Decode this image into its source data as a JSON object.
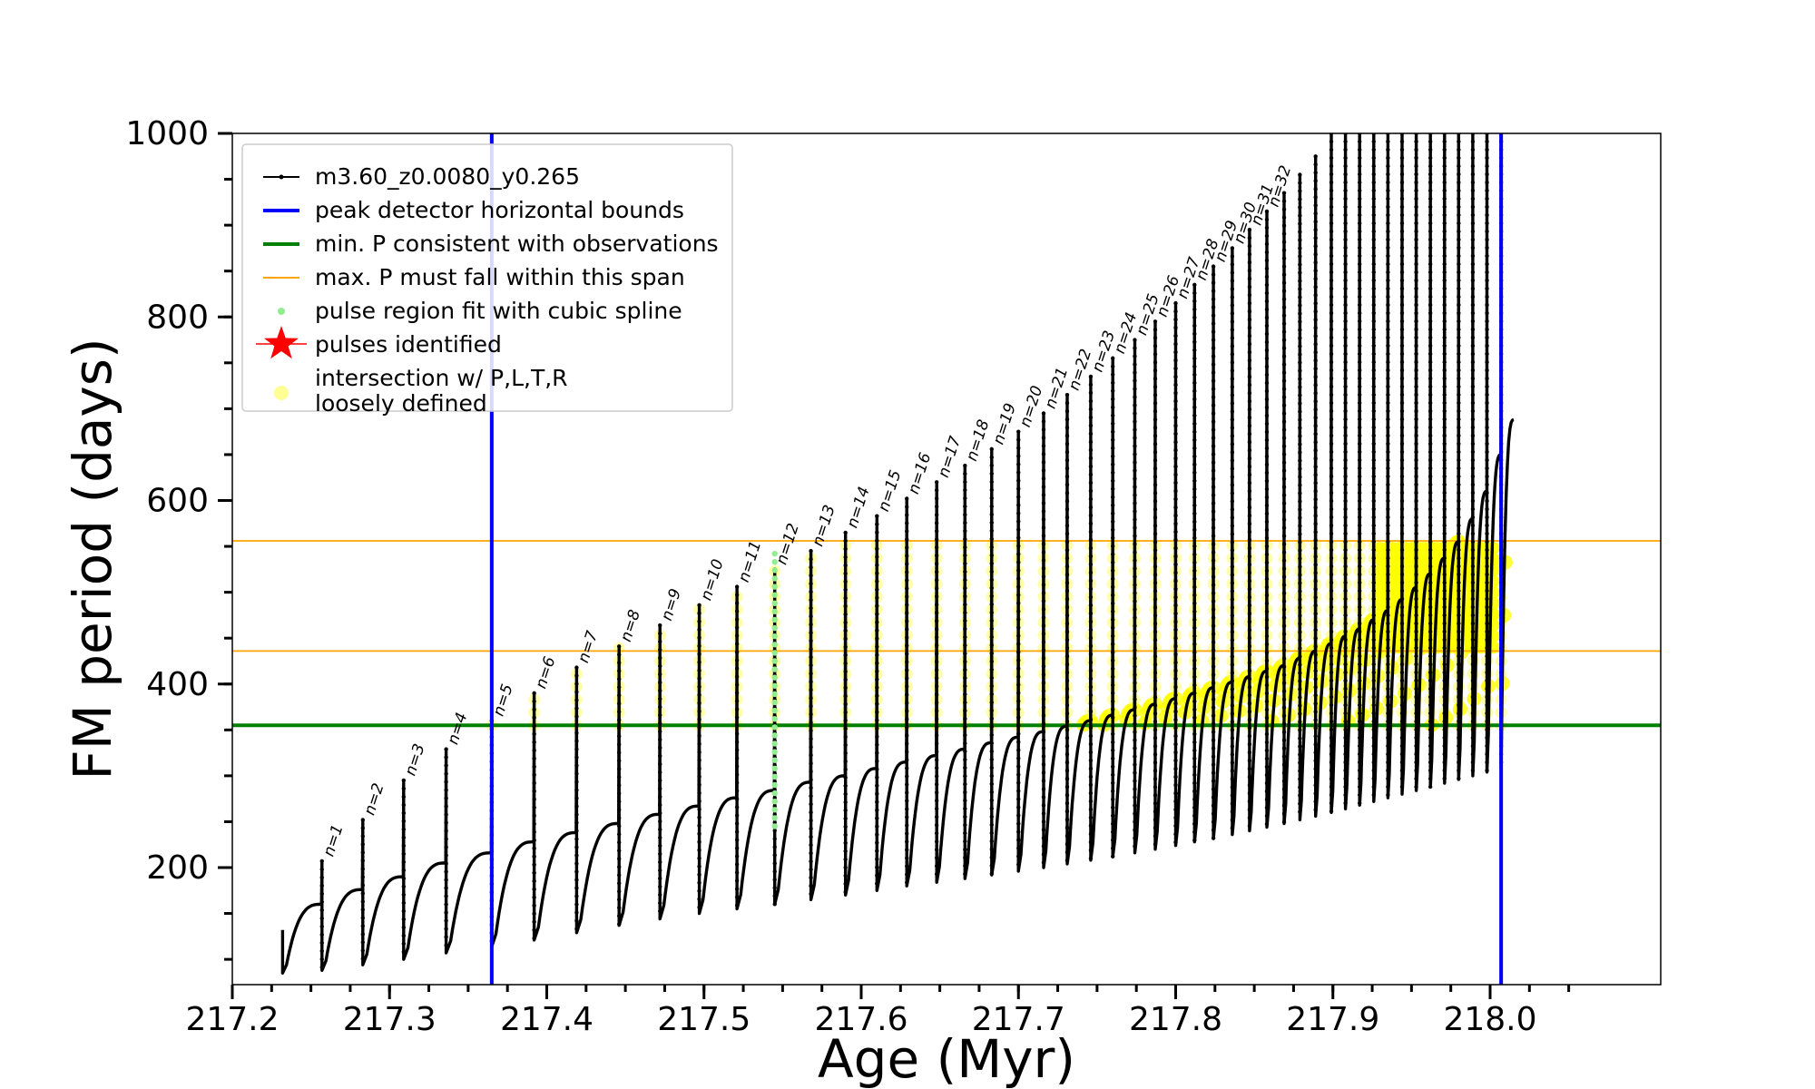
{
  "chart_data": {
    "type": "line",
    "xlabel": "Age (Myr)",
    "ylabel": "FM period (days)",
    "xlim": [
      217.2,
      218.05
    ],
    "ylim": [
      70,
      1000
    ],
    "x_ticks": [
      "217.2",
      "217.3",
      "217.4",
      "217.5",
      "217.6",
      "217.7",
      "217.8",
      "217.9",
      "218.0"
    ],
    "x_tick_values": [
      217.2,
      217.3,
      217.4,
      217.5,
      217.6,
      217.7,
      217.8,
      217.9,
      218.0
    ],
    "y_ticks": [
      "200",
      "400",
      "600",
      "800",
      "1000"
    ],
    "y_tick_values": [
      200,
      400,
      600,
      800,
      1000
    ],
    "legend_position": "upper-left",
    "legend": [
      {
        "label": "m3.60_z0.0080_y0.265",
        "marker": "line-dot",
        "color": "#000000"
      },
      {
        "label": "peak detector horizontal bounds",
        "marker": "line",
        "color": "#0000ff"
      },
      {
        "label": "min. P consistent with observations",
        "marker": "line",
        "color": "#008000"
      },
      {
        "label": "max. P must fall within this span",
        "marker": "line",
        "color": "#ffa500"
      },
      {
        "label": "pulse region fit with cubic spline",
        "marker": "dot",
        "color": "#90ee90"
      },
      {
        "label": "pulses identified",
        "marker": "star",
        "color": "#ff0000"
      },
      {
        "label": "intersection w/ P,L,T,R\nloosely defined",
        "marker": "circle",
        "color": "#ffff66"
      }
    ],
    "vertical_lines": [
      {
        "x": 217.365,
        "color": "#0000ff"
      },
      {
        "x": 218.007,
        "color": "#0000ff"
      }
    ],
    "horizontal_lines": [
      {
        "y": 355,
        "color": "#008000",
        "name": "min. P consistent with observations"
      },
      {
        "y": 436,
        "color": "#ffa500",
        "name": "max. P span lower"
      },
      {
        "y": 556,
        "color": "#ffa500",
        "name": "max. P span upper"
      }
    ],
    "pulse_labels": [
      "n=1",
      "n=2",
      "n=3",
      "n=4",
      "n=5",
      "n=6",
      "n=7",
      "n=8",
      "n=9",
      "n=10",
      "n=11",
      "n=12",
      "n=13",
      "n=14",
      "n=15",
      "n=16",
      "n=17",
      "n=18",
      "n=19",
      "n=20",
      "n=21",
      "n=22",
      "n=23",
      "n=24",
      "n=25",
      "n=26",
      "n=27",
      "n=28",
      "n=29",
      "n=30",
      "n=31",
      "n=32"
    ],
    "pulses": [
      {
        "x": 217.257,
        "peak": 207,
        "dip": 88,
        "base_end": 160
      },
      {
        "x": 217.283,
        "peak": 252,
        "dip": 94,
        "base_end": 176
      },
      {
        "x": 217.309,
        "peak": 295,
        "dip": 100,
        "base_end": 190
      },
      {
        "x": 217.336,
        "peak": 329,
        "dip": 107,
        "base_end": 205
      },
      {
        "x": 217.365,
        "peak": 360,
        "dip": 114,
        "base_end": 216
      },
      {
        "x": 217.392,
        "peak": 390,
        "dip": 121,
        "base_end": 228
      },
      {
        "x": 217.419,
        "peak": 418,
        "dip": 129,
        "base_end": 238
      },
      {
        "x": 217.446,
        "peak": 441,
        "dip": 137,
        "base_end": 248
      },
      {
        "x": 217.472,
        "peak": 464,
        "dip": 144,
        "base_end": 258
      },
      {
        "x": 217.497,
        "peak": 486,
        "dip": 150,
        "base_end": 267
      },
      {
        "x": 217.521,
        "peak": 506,
        "dip": 155,
        "base_end": 276
      },
      {
        "x": 217.545,
        "peak": 525,
        "dip": 160,
        "base_end": 284
      },
      {
        "x": 217.568,
        "peak": 545,
        "dip": 165,
        "base_end": 293
      },
      {
        "x": 217.59,
        "peak": 565,
        "dip": 170,
        "base_end": 300
      },
      {
        "x": 217.61,
        "peak": 583,
        "dip": 175,
        "base_end": 308
      },
      {
        "x": 217.629,
        "peak": 602,
        "dip": 180,
        "base_end": 315
      },
      {
        "x": 217.648,
        "peak": 620,
        "dip": 184,
        "base_end": 322
      },
      {
        "x": 217.666,
        "peak": 638,
        "dip": 188,
        "base_end": 329
      },
      {
        "x": 217.683,
        "peak": 656,
        "dip": 192,
        "base_end": 336
      },
      {
        "x": 217.7,
        "peak": 675,
        "dip": 196,
        "base_end": 342
      },
      {
        "x": 217.716,
        "peak": 695,
        "dip": 200,
        "base_end": 348
      },
      {
        "x": 217.731,
        "peak": 715,
        "dip": 204,
        "base_end": 354
      },
      {
        "x": 217.746,
        "peak": 735,
        "dip": 208,
        "base_end": 360
      },
      {
        "x": 217.76,
        "peak": 755,
        "dip": 212,
        "base_end": 366
      },
      {
        "x": 217.774,
        "peak": 775,
        "dip": 216,
        "base_end": 372
      },
      {
        "x": 217.787,
        "peak": 795,
        "dip": 220,
        "base_end": 378
      },
      {
        "x": 217.8,
        "peak": 815,
        "dip": 224,
        "base_end": 384
      },
      {
        "x": 217.812,
        "peak": 835,
        "dip": 228,
        "base_end": 390
      },
      {
        "x": 217.824,
        "peak": 855,
        "dip": 232,
        "base_end": 396
      },
      {
        "x": 217.836,
        "peak": 875,
        "dip": 236,
        "base_end": 402
      },
      {
        "x": 217.847,
        "peak": 895,
        "dip": 240,
        "base_end": 408
      },
      {
        "x": 217.858,
        "peak": 915,
        "dip": 244,
        "base_end": 414
      },
      {
        "x": 217.869,
        "peak": 935,
        "dip": 248,
        "base_end": 420
      },
      {
        "x": 217.879,
        "peak": 955,
        "dip": 252,
        "base_end": 428
      },
      {
        "x": 217.889,
        "peak": 975,
        "dip": 256,
        "base_end": 436
      },
      {
        "x": 217.899,
        "peak": 1000,
        "dip": 260,
        "base_end": 444
      },
      {
        "x": 217.908,
        "peak": 1000,
        "dip": 264,
        "base_end": 452
      },
      {
        "x": 217.917,
        "peak": 1000,
        "dip": 268,
        "base_end": 460
      },
      {
        "x": 217.926,
        "peak": 1000,
        "dip": 272,
        "base_end": 470
      },
      {
        "x": 217.935,
        "peak": 1000,
        "dip": 276,
        "base_end": 480
      },
      {
        "x": 217.944,
        "peak": 1000,
        "dip": 280,
        "base_end": 492
      },
      {
        "x": 217.953,
        "peak": 1000,
        "dip": 284,
        "base_end": 505
      },
      {
        "x": 217.962,
        "peak": 1000,
        "dip": 288,
        "base_end": 520
      },
      {
        "x": 217.971,
        "peak": 1000,
        "dip": 292,
        "base_end": 537
      },
      {
        "x": 217.98,
        "peak": 1000,
        "dip": 296,
        "base_end": 555
      },
      {
        "x": 217.989,
        "peak": 1000,
        "dip": 300,
        "base_end": 580
      },
      {
        "x": 217.998,
        "peak": 1000,
        "dip": 304,
        "base_end": 610
      },
      {
        "x": 218.007,
        "peak": 1000,
        "dip": 308,
        "base_end": 650
      }
    ],
    "start_point": {
      "x": 217.232,
      "y": 132
    },
    "end_point": {
      "x": 218.015,
      "y": 688
    }
  }
}
